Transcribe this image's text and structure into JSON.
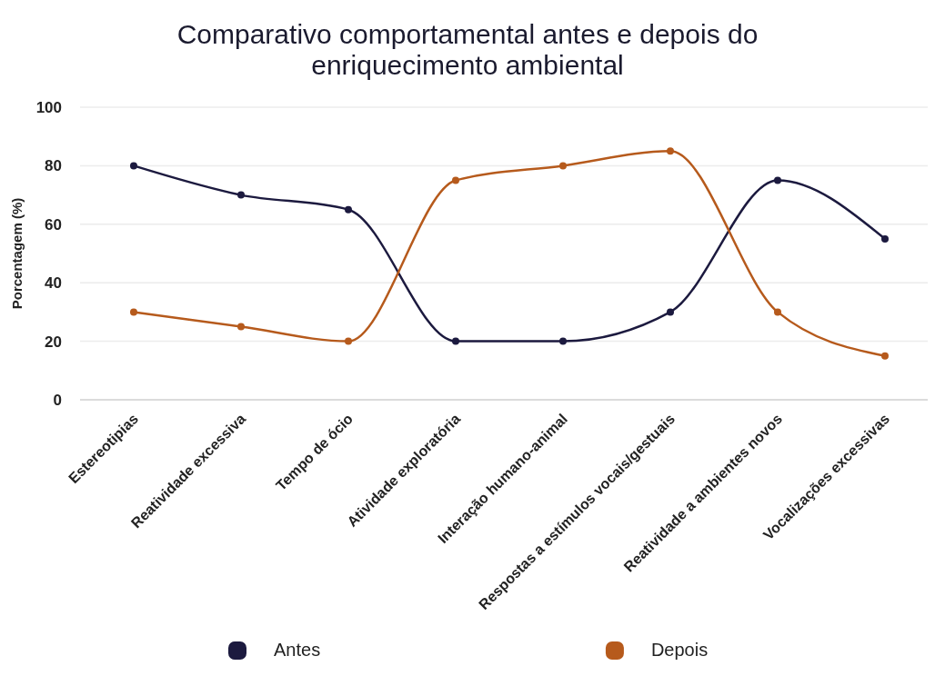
{
  "chart_data": {
    "type": "line",
    "title": "Comparativo comportamental antes e depois do enriquecimento ambiental",
    "ylabel": "Porcentagem (%)",
    "categories": [
      "Estereotipias",
      "Reatividade excessiva",
      "Tempo de ócio",
      "Atividade exploratória",
      "Interação humano-animal",
      "Respostas a estímulos vocais/gestuais",
      "Reatividade a ambientes novos",
      "Vocalizações excessivas"
    ],
    "series": [
      {
        "name": "Antes",
        "color": "#1c1a3f",
        "values": [
          80,
          70,
          65,
          20,
          20,
          30,
          75,
          55
        ]
      },
      {
        "name": "Depois",
        "color": "#b65a1c",
        "values": [
          30,
          25,
          20,
          75,
          80,
          85,
          30,
          15
        ]
      }
    ],
    "ylim": [
      0,
      100
    ],
    "yticks": [
      0,
      20,
      40,
      60,
      80,
      100
    ],
    "grid": "y",
    "legend": "bottom",
    "marker": "circle",
    "line_style": "solid"
  }
}
